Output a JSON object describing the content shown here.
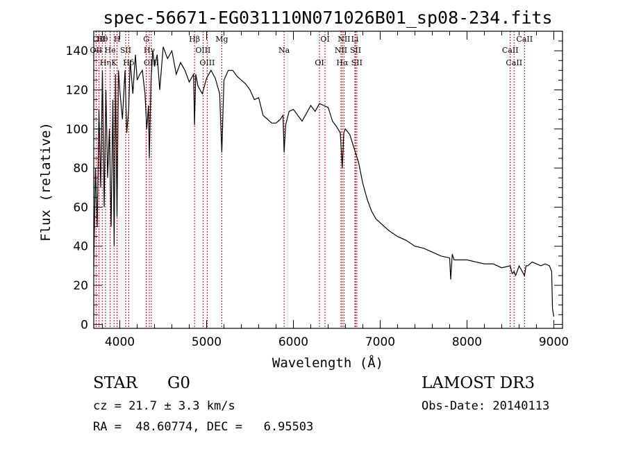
{
  "colors": {
    "spectrum": "#000000",
    "line_marker": "#cc0000",
    "axes": "#000000",
    "background": "#ffffff"
  },
  "chart_data": {
    "type": "line",
    "title": "spec-56671-EG031110N071026B01_sp08-234.fits",
    "xlabel": "Wavelength (Å)",
    "ylabel": "Flux (relative)",
    "xlim": [
      3700,
      9100
    ],
    "ylim": [
      -2,
      150
    ],
    "x_ticks": [
      4000,
      5000,
      6000,
      7000,
      8000,
      9000
    ],
    "y_ticks": [
      0,
      20,
      40,
      60,
      80,
      100,
      120,
      140
    ],
    "grid": false,
    "series": [
      {
        "name": "spectrum",
        "x": [
          3700,
          3720,
          3740,
          3760,
          3780,
          3800,
          3820,
          3840,
          3860,
          3880,
          3900,
          3920,
          3935,
          3950,
          3968,
          3985,
          4000,
          4030,
          4060,
          4080,
          4102,
          4120,
          4150,
          4180,
          4200,
          4230,
          4260,
          4290,
          4310,
          4330,
          4340,
          4360,
          4380,
          4400,
          4430,
          4460,
          4500,
          4550,
          4600,
          4650,
          4700,
          4750,
          4800,
          4850,
          4861,
          4875,
          4900,
          4950,
          5000,
          5050,
          5100,
          5150,
          5175,
          5200,
          5250,
          5300,
          5350,
          5400,
          5450,
          5500,
          5550,
          5600,
          5650,
          5700,
          5750,
          5800,
          5850,
          5880,
          5893,
          5910,
          5950,
          6000,
          6050,
          6100,
          6150,
          6200,
          6250,
          6300,
          6350,
          6400,
          6450,
          6500,
          6540,
          6563,
          6580,
          6600,
          6650,
          6700,
          6750,
          6800,
          6850,
          6900,
          6950,
          7000,
          7100,
          7200,
          7300,
          7400,
          7500,
          7600,
          7700,
          7800,
          7812,
          7830,
          7850,
          7900,
          8000,
          8100,
          8200,
          8300,
          8400,
          8498,
          8520,
          8542,
          8560,
          8600,
          8662,
          8680,
          8700,
          8750,
          8800,
          8850,
          8900,
          8950,
          8975,
          8985,
          9000
        ],
        "values": [
          30,
          80,
          50,
          110,
          70,
          130,
          60,
          120,
          75,
          100,
          50,
          115,
          40,
          128,
          55,
          130,
          120,
          105,
          130,
          98,
          110,
          135,
          118,
          138,
          125,
          128,
          130,
          118,
          100,
          112,
          85,
          125,
          140,
          132,
          138,
          120,
          142,
          136,
          140,
          128,
          134,
          130,
          124,
          128,
          102,
          128,
          122,
          118,
          126,
          130,
          126,
          118,
          88,
          125,
          130,
          130,
          127,
          125,
          123,
          120,
          115,
          116,
          107,
          105,
          103,
          103,
          105,
          107,
          88,
          102,
          109,
          110,
          107,
          104,
          108,
          112,
          109,
          113,
          112,
          111,
          104,
          101,
          98,
          80,
          98,
          100,
          97,
          90,
          83,
          72,
          64,
          58,
          54,
          52,
          48,
          45,
          43,
          40,
          39,
          37,
          35,
          34,
          23,
          36,
          33,
          33,
          33,
          32,
          31,
          31,
          29,
          30,
          26,
          27,
          25,
          30,
          25,
          30,
          30,
          32,
          31,
          30,
          31,
          30,
          27,
          8,
          4
        ]
      }
    ],
    "line_markers": [
      {
        "name": "Hθ",
        "wavelength": 3798
      },
      {
        "name": "OII",
        "wavelength": 3727
      },
      {
        "name": "Hη",
        "wavelength": 3835
      },
      {
        "name": "OII",
        "wavelength": 3760
      },
      {
        "name": "He",
        "wavelength": 3889
      },
      {
        "name": "K",
        "wavelength": 3934
      },
      {
        "name": "H",
        "wavelength": 3968
      },
      {
        "name": "SII",
        "wavelength": 4068
      },
      {
        "name": "Hδ",
        "wavelength": 4102
      },
      {
        "name": "G",
        "wavelength": 4304
      },
      {
        "name": "Hγ",
        "wavelength": 4340
      },
      {
        "name": "OIII",
        "wavelength": 4363
      },
      {
        "name": "Hβ",
        "wavelength": 4861
      },
      {
        "name": "OIII",
        "wavelength": 4959
      },
      {
        "name": "OIII",
        "wavelength": 5007
      },
      {
        "name": "Mg",
        "wavelength": 5175
      },
      {
        "name": "Na",
        "wavelength": 5893
      },
      {
        "name": "OI",
        "wavelength": 6300
      },
      {
        "name": "OI",
        "wavelength": 6364
      },
      {
        "name": "NII",
        "wavelength": 6548
      },
      {
        "name": "Hα",
        "wavelength": 6563
      },
      {
        "name": "NII",
        "wavelength": 6583
      },
      {
        "name": "SII",
        "wavelength": 6716
      },
      {
        "name": "SII",
        "wavelength": 6731
      },
      {
        "name": "Li",
        "wavelength": 6708
      },
      {
        "name": "CaII",
        "wavelength": 8498
      },
      {
        "name": "CaII",
        "wavelength": 8542
      },
      {
        "name": "CaII",
        "wavelength": 8662
      }
    ]
  },
  "footer": {
    "object_class": "STAR",
    "subclass": "G0",
    "survey": "LAMOST DR3",
    "redshift": "cz = 21.7 ± 3.3 km/s",
    "obs_date": "Obs-Date: 20140113",
    "coords": "RA =  48.60774, DEC =   6.95503"
  }
}
